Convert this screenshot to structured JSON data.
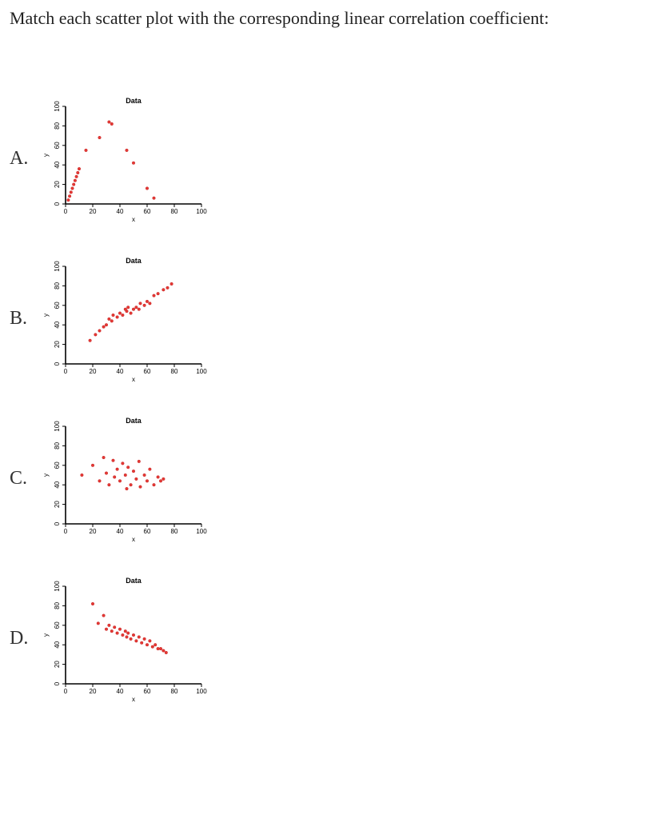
{
  "question": "Match each scatter plot with the corresponding linear correlation coefficient:",
  "axis": {
    "xlim": [
      0,
      100
    ],
    "ylim": [
      0,
      100
    ],
    "xtick_step": 20,
    "ytick_step": 20,
    "xlabel": "x",
    "ylabel": "y",
    "chart_title": "Data",
    "label_fontsize": 9,
    "tick_fontsize": 8
  },
  "point_style": {
    "color": "#e53935",
    "radius": 1.8,
    "stroke": "#c62828"
  },
  "plots": [
    {
      "label": "A.",
      "type": "scatter",
      "points": [
        [
          2,
          4
        ],
        [
          3,
          8
        ],
        [
          4,
          12
        ],
        [
          5,
          16
        ],
        [
          6,
          20
        ],
        [
          7,
          24
        ],
        [
          8,
          28
        ],
        [
          9,
          32
        ],
        [
          10,
          36
        ],
        [
          15,
          55
        ],
        [
          25,
          68
        ],
        [
          32,
          84
        ],
        [
          34,
          82
        ],
        [
          45,
          55
        ],
        [
          50,
          42
        ],
        [
          60,
          16
        ],
        [
          65,
          6
        ]
      ]
    },
    {
      "label": "B.",
      "type": "scatter",
      "points": [
        [
          18,
          24
        ],
        [
          22,
          30
        ],
        [
          25,
          34
        ],
        [
          28,
          38
        ],
        [
          30,
          40
        ],
        [
          32,
          46
        ],
        [
          34,
          44
        ],
        [
          35,
          50
        ],
        [
          38,
          48
        ],
        [
          40,
          52
        ],
        [
          42,
          50
        ],
        [
          44,
          56
        ],
        [
          45,
          54
        ],
        [
          46,
          58
        ],
        [
          48,
          52
        ],
        [
          50,
          56
        ],
        [
          52,
          58
        ],
        [
          54,
          56
        ],
        [
          55,
          62
        ],
        [
          58,
          60
        ],
        [
          60,
          64
        ],
        [
          62,
          62
        ],
        [
          65,
          70
        ],
        [
          68,
          72
        ],
        [
          72,
          76
        ],
        [
          75,
          78
        ],
        [
          78,
          82
        ]
      ]
    },
    {
      "label": "C.",
      "type": "scatter",
      "points": [
        [
          12,
          50
        ],
        [
          20,
          60
        ],
        [
          25,
          44
        ],
        [
          28,
          68
        ],
        [
          30,
          52
        ],
        [
          32,
          40
        ],
        [
          35,
          65
        ],
        [
          36,
          48
        ],
        [
          38,
          56
        ],
        [
          40,
          44
        ],
        [
          42,
          62
        ],
        [
          44,
          50
        ],
        [
          45,
          36
        ],
        [
          46,
          58
        ],
        [
          48,
          40
        ],
        [
          50,
          54
        ],
        [
          52,
          46
        ],
        [
          54,
          64
        ],
        [
          55,
          38
        ],
        [
          58,
          50
        ],
        [
          60,
          44
        ],
        [
          62,
          56
        ],
        [
          65,
          40
        ],
        [
          68,
          48
        ],
        [
          70,
          44
        ],
        [
          72,
          46
        ]
      ]
    },
    {
      "label": "D.",
      "type": "scatter",
      "points": [
        [
          20,
          82
        ],
        [
          24,
          62
        ],
        [
          28,
          70
        ],
        [
          30,
          56
        ],
        [
          32,
          60
        ],
        [
          34,
          54
        ],
        [
          36,
          58
        ],
        [
          38,
          52
        ],
        [
          40,
          56
        ],
        [
          42,
          50
        ],
        [
          44,
          54
        ],
        [
          45,
          48
        ],
        [
          46,
          52
        ],
        [
          48,
          46
        ],
        [
          50,
          50
        ],
        [
          52,
          44
        ],
        [
          54,
          48
        ],
        [
          56,
          42
        ],
        [
          58,
          46
        ],
        [
          60,
          40
        ],
        [
          62,
          44
        ],
        [
          64,
          38
        ],
        [
          66,
          40
        ],
        [
          68,
          36
        ],
        [
          70,
          36
        ],
        [
          72,
          34
        ],
        [
          74,
          32
        ]
      ]
    }
  ]
}
